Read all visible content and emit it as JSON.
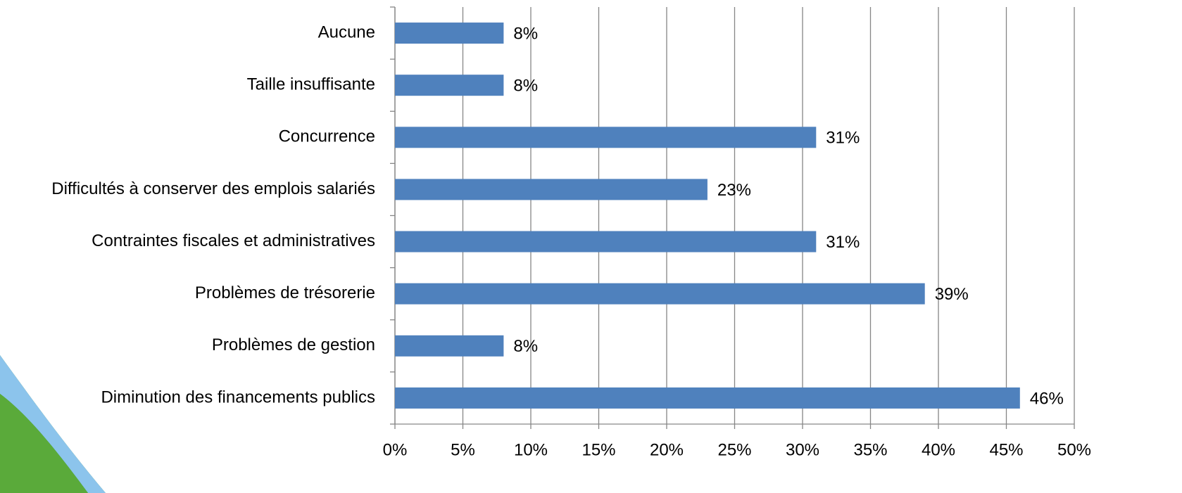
{
  "chart_data": {
    "type": "bar",
    "orientation": "horizontal",
    "categories": [
      "Aucune",
      "Taille insuffisante",
      "Concurrence",
      "Difficultés à conserver des emplois salariés",
      "Contraintes fiscales et administratives",
      "Problèmes de trésorerie",
      "Problèmes de gestion",
      "Diminution des financements publics"
    ],
    "values": [
      8,
      8,
      31,
      23,
      31,
      39,
      8,
      46
    ],
    "value_labels": [
      "8%",
      "8%",
      "31%",
      "23%",
      "31%",
      "39%",
      "8%",
      "46%"
    ],
    "color": "#4f81bd",
    "xlim": [
      0,
      50
    ],
    "xticks": [
      {
        "value": 0,
        "label": "0%"
      },
      {
        "value": 5,
        "label": "5%"
      },
      {
        "value": 10,
        "label": "10%"
      },
      {
        "value": 15,
        "label": "15%"
      },
      {
        "value": 20,
        "label": "20%"
      },
      {
        "value": 25,
        "label": "25%"
      },
      {
        "value": 30,
        "label": "30%"
      },
      {
        "value": 35,
        "label": "35%"
      },
      {
        "value": 40,
        "label": "40%"
      },
      {
        "value": 45,
        "label": "45%"
      },
      {
        "value": 50,
        "label": "50%"
      }
    ],
    "grid": true
  }
}
